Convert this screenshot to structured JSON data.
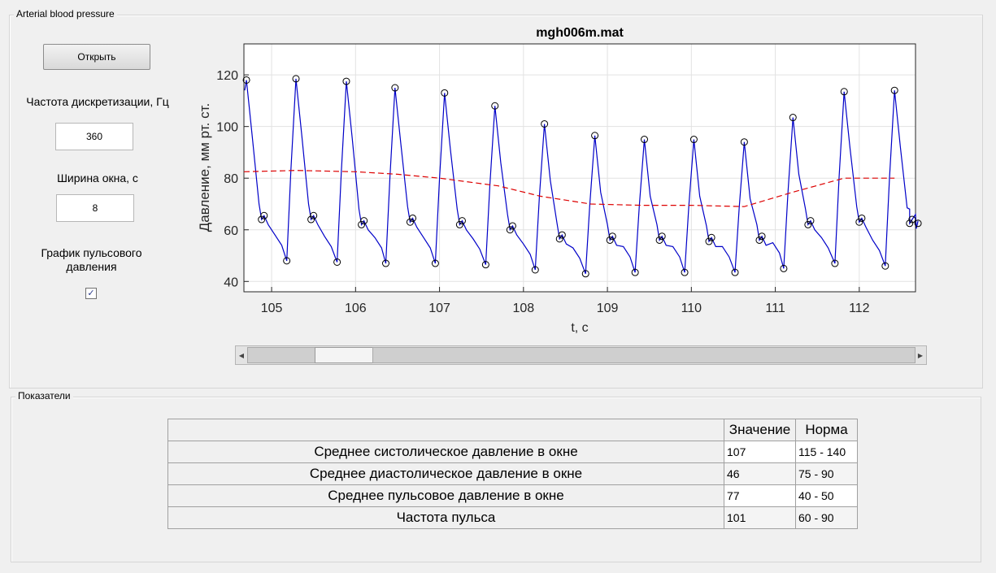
{
  "panel_bp": {
    "title": "Arterial blood pressure"
  },
  "controls": {
    "open_label": "Открыть",
    "fs_label": "Частота дискретизации, Гц",
    "fs_value": "360",
    "win_label": "Ширина окна, с",
    "win_value": "8",
    "pulse_label_line1": "График пульсового",
    "pulse_label_line2": "давления",
    "pulse_checked": true,
    "check_glyph": "✓"
  },
  "scrollbar": {
    "left_arrow": "◀",
    "right_arrow": "▶"
  },
  "chart_data": {
    "type": "line",
    "title": "mgh006m.mat",
    "xlabel": "t, с",
    "ylabel": "Давление, мм рт. ст.",
    "xlim": [
      104.67,
      112.67
    ],
    "ylim": [
      36,
      132
    ],
    "xticks": [
      105,
      106,
      107,
      108,
      109,
      110,
      111,
      112
    ],
    "yticks": [
      40,
      60,
      80,
      100,
      120
    ],
    "grid": true,
    "series": [
      {
        "role": "pressure",
        "color": "#0000c8",
        "style": "solid",
        "beats": [
          {
            "t": 104.7,
            "sys": 118,
            "notch": 64,
            "dia": 48
          },
          {
            "t": 105.29,
            "sys": 118.5,
            "notch": 64,
            "dia": 47.5
          },
          {
            "t": 105.89,
            "sys": 117.5,
            "notch": 62,
            "dia": 47
          },
          {
            "t": 106.47,
            "sys": 115,
            "notch": 63,
            "dia": 47
          },
          {
            "t": 107.06,
            "sys": 113,
            "notch": 62,
            "dia": 46.5
          },
          {
            "t": 107.66,
            "sys": 108,
            "notch": 60,
            "dia": 44.5
          },
          {
            "t": 108.25,
            "sys": 101,
            "notch": 56.5,
            "dia": 43
          },
          {
            "t": 108.85,
            "sys": 96.5,
            "notch": 56,
            "dia": 43.5
          },
          {
            "t": 109.44,
            "sys": 95,
            "notch": 56,
            "dia": 43.5
          },
          {
            "t": 110.03,
            "sys": 95,
            "notch": 55.5,
            "dia": 43.5
          },
          {
            "t": 110.63,
            "sys": 94,
            "notch": 56,
            "dia": 45
          },
          {
            "t": 111.21,
            "sys": 103.5,
            "notch": 62,
            "dia": 47
          },
          {
            "t": 111.82,
            "sys": 113.5,
            "notch": 63,
            "dia": 46
          },
          {
            "t": 112.42,
            "sys": 114,
            "notch": 62.5,
            "dia": null
          }
        ],
        "tail": [
          [
            112.6,
            68
          ],
          [
            112.67,
            66
          ]
        ]
      },
      {
        "role": "pulse-pressure",
        "color": "#dd0000",
        "style": "dashed",
        "points": [
          [
            104.67,
            82.5
          ],
          [
            105.3,
            83
          ],
          [
            106,
            82.5
          ],
          [
            106.5,
            81.5
          ],
          [
            107,
            80
          ],
          [
            107.7,
            77
          ],
          [
            108.2,
            73
          ],
          [
            108.8,
            70
          ],
          [
            109.4,
            69.5
          ],
          [
            110,
            69.5
          ],
          [
            110.63,
            69
          ],
          [
            111.2,
            74.5
          ],
          [
            111.82,
            80
          ],
          [
            112.42,
            80
          ]
        ]
      }
    ]
  },
  "indicators": {
    "panel_title": "Показатели",
    "col_value": "Значение",
    "col_norm": "Норма",
    "rows": [
      {
        "label": "Среднее систолическое давление в окне",
        "value": "107",
        "norm": "115 - 140"
      },
      {
        "label": "Среднее диастолическое давление в окне",
        "value": "46",
        "norm": "75 - 90"
      },
      {
        "label": "Среднее пульсовое давление в окне",
        "value": "77",
        "norm": "40 - 50"
      },
      {
        "label": "Частота пульса",
        "value": "101",
        "norm": "60 - 90"
      }
    ]
  }
}
